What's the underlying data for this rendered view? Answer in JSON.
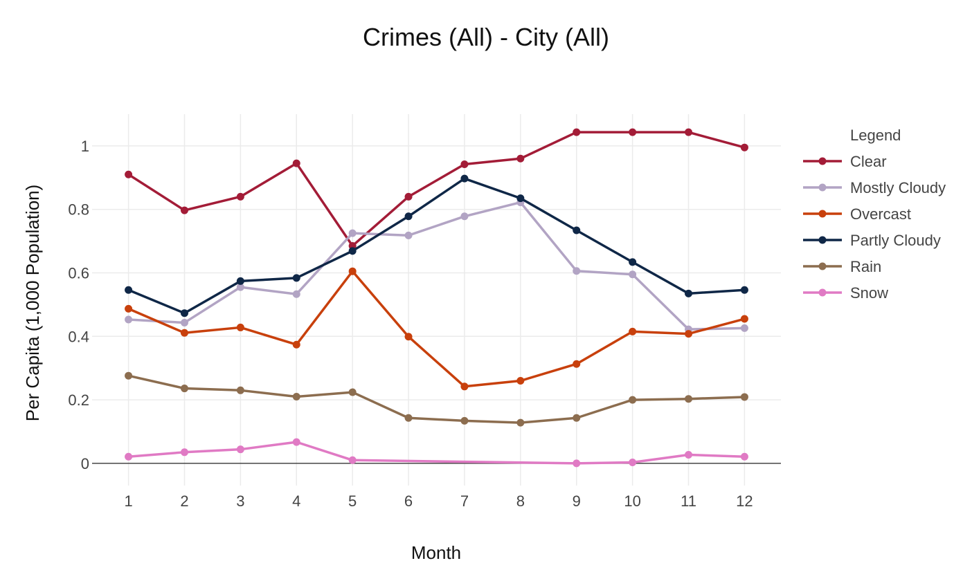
{
  "chart_data": {
    "type": "line",
    "title": "Crimes (All) - City (All)",
    "xlabel": "Month",
    "ylabel": "Per Capita (1,000 Population)",
    "x": [
      1,
      2,
      3,
      4,
      5,
      6,
      7,
      8,
      9,
      10,
      11,
      12
    ],
    "x_tick_labels": [
      "1",
      "2",
      "3",
      "4",
      "5",
      "6",
      "7",
      "8",
      "9",
      "10",
      "11",
      "12"
    ],
    "yticks": [
      0,
      0.2,
      0.4,
      0.6,
      0.8,
      1
    ],
    "y_tick_labels": [
      "0",
      "0.2",
      "0.4",
      "0.6",
      "0.8",
      "1"
    ],
    "ylim": [
      -0.07,
      1.1
    ],
    "grid": true,
    "legend": {
      "title": "Legend",
      "position": "right"
    },
    "series": [
      {
        "name": "Clear",
        "color": "#a31c37",
        "values": [
          0.91,
          0.797,
          0.84,
          0.945,
          0.685,
          0.84,
          0.942,
          0.96,
          1.043,
          1.043,
          1.043,
          0.995
        ]
      },
      {
        "name": "Mostly Cloudy",
        "color": "#b2a4c4",
        "values": [
          0.453,
          0.443,
          0.555,
          0.533,
          0.725,
          0.718,
          0.778,
          0.822,
          0.606,
          0.595,
          0.422,
          0.426
        ]
      },
      {
        "name": "Overcast",
        "color": "#c8400c",
        "values": [
          0.487,
          0.411,
          0.428,
          0.374,
          0.605,
          0.399,
          0.242,
          0.26,
          0.313,
          0.415,
          0.408,
          0.455
        ]
      },
      {
        "name": "Partly Cloudy",
        "color": "#0f2747",
        "values": [
          0.546,
          0.473,
          0.574,
          0.584,
          0.669,
          0.778,
          0.897,
          0.835,
          0.734,
          0.634,
          0.535,
          0.546
        ]
      },
      {
        "name": "Rain",
        "color": "#8c6d4f",
        "values": [
          0.276,
          0.236,
          0.23,
          0.21,
          0.224,
          0.143,
          0.134,
          0.128,
          0.143,
          0.2,
          0.203,
          0.209
        ]
      },
      {
        "name": "Snow",
        "color": "#e07ac4",
        "values": [
          0.021,
          0.035,
          0.044,
          0.067,
          0.01,
          null,
          null,
          null,
          0.0,
          0.003,
          0.027,
          0.021
        ]
      }
    ]
  }
}
